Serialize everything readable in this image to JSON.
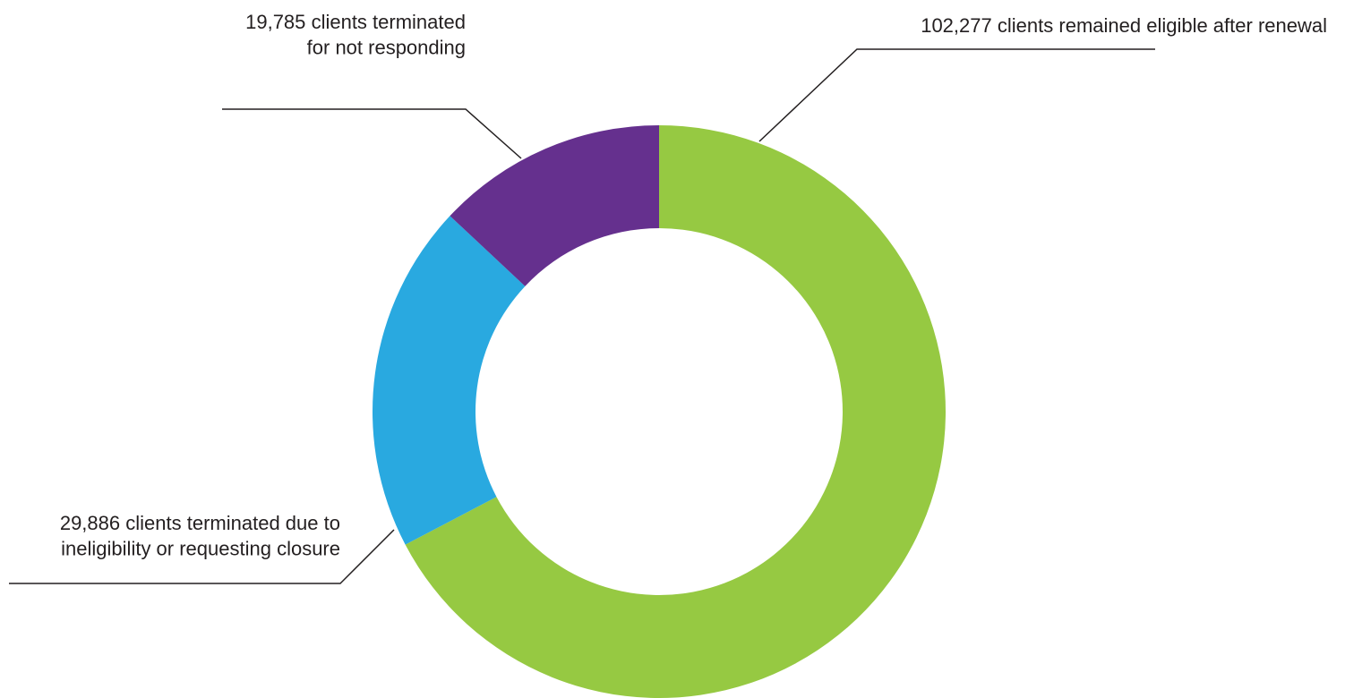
{
  "chart_data": {
    "type": "donut",
    "values": [
      102277,
      29886,
      19785
    ],
    "value_labels": [
      "102,277",
      "29,886",
      "19,785"
    ],
    "categories": [
      [
        "clients remained eligible after renewal"
      ],
      [
        "clients terminated due to",
        "ineligibility or requesting closure"
      ],
      [
        "clients terminated",
        "for not responding"
      ]
    ],
    "colors": [
      "#96c942",
      "#29a9e0",
      "#65308e"
    ]
  }
}
